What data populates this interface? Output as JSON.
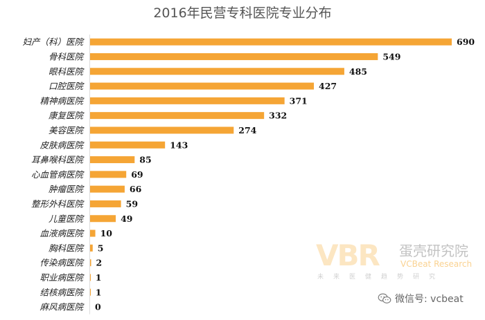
{
  "chart_data": {
    "type": "bar",
    "orientation": "horizontal",
    "title": "2016年民营专科医院专业分布",
    "categories": [
      "妇产（科）医院",
      "骨科医院",
      "眼科医院",
      "口腔医院",
      "精神病医院",
      "康复医院",
      "美容医院",
      "皮肤病医院",
      "耳鼻喉科医院",
      "心血管病医院",
      "肿瘤医院",
      "整形外科医院",
      "儿童医院",
      "血液病医院",
      "胸科医院",
      "传染病医院",
      "职业病医院",
      "结核病医院",
      "麻风病医院"
    ],
    "values": [
      690,
      549,
      485,
      427,
      371,
      332,
      274,
      143,
      85,
      69,
      66,
      59,
      49,
      10,
      5,
      2,
      1,
      1,
      0
    ],
    "xlim": [
      0,
      690
    ],
    "bar_color": "#F5A535",
    "grid": false,
    "data_labels": true
  },
  "watermark": {
    "logo": "VBR",
    "name_cn": "蛋壳研究院",
    "name_en": "VCBeat Research",
    "tagline": "未来医健趋势研究"
  },
  "footer": {
    "wechat_text": "微信号: vcbeat",
    "icon": "wechat-icon"
  }
}
